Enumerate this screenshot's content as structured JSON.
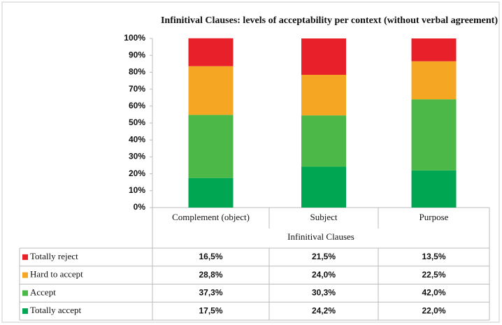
{
  "chart_data": {
    "type": "stacked_bar",
    "title": "Infinitival Clauses: levels of acceptability per context (without verbal agreement)",
    "x_label": "Infinitival Clauses",
    "categories": [
      "Complement (object)",
      "Subject",
      "Purpose"
    ],
    "series": [
      {
        "name": "Totally reject",
        "color": "#e8202a",
        "values": [
          16.5,
          21.5,
          13.5
        ],
        "value_labels": [
          "16,5%",
          "21,5%",
          "13,5%"
        ]
      },
      {
        "name": "Hard to accept",
        "color": "#f5a623",
        "values": [
          28.8,
          24.0,
          22.5
        ],
        "value_labels": [
          "28,8%",
          "24,0%",
          "22,5%"
        ]
      },
      {
        "name": "Accept",
        "color": "#4cb848",
        "values": [
          37.3,
          30.3,
          42.0
        ],
        "value_labels": [
          "37,3%",
          "30,3%",
          "42,0%"
        ]
      },
      {
        "name": "Totally accept",
        "color": "#00a651",
        "values": [
          17.5,
          24.2,
          22.0
        ],
        "value_labels": [
          "17,5%",
          "24,2%",
          "22,0%"
        ]
      }
    ],
    "ylim": [
      0,
      100
    ],
    "yticks": [
      {
        "value": 0,
        "label": "0%"
      },
      {
        "value": 10,
        "label": "10%"
      },
      {
        "value": 20,
        "label": "20%"
      },
      {
        "value": 30,
        "label": "30%"
      },
      {
        "value": 40,
        "label": "40%"
      },
      {
        "value": 50,
        "label": "50%"
      },
      {
        "value": 60,
        "label": "60%"
      },
      {
        "value": 70,
        "label": "70%"
      },
      {
        "value": 80,
        "label": "80%"
      },
      {
        "value": 90,
        "label": "90%"
      },
      {
        "value": 100,
        "label": "100%"
      }
    ]
  }
}
